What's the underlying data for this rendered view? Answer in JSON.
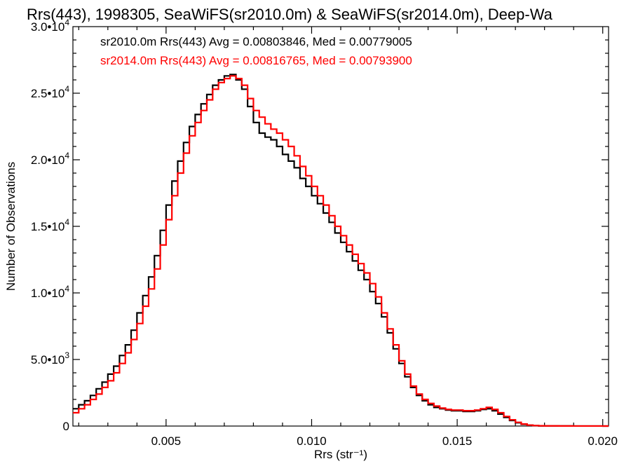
{
  "chart_data": {
    "type": "line",
    "title": "Rrs(443), 1998305, SeaWiFS(sr2010.0m) & SeaWiFS(sr2014.0m), Deep-Wa",
    "xlabel": "Rrs (str⁻¹)",
    "ylabel": "Number of Observations",
    "xlim": [
      0.0018,
      0.0202
    ],
    "ylim": [
      0,
      30000
    ],
    "x_ticks": [
      0.005,
      0.01,
      0.015,
      0.02
    ],
    "x_tick_labels": [
      "0.005",
      "0.010",
      "0.015",
      "0.020"
    ],
    "y_ticks": [
      0,
      5000,
      10000,
      15000,
      20000,
      25000,
      30000
    ],
    "y_tick_labels": [
      {
        "mant": "0",
        "exp": ""
      },
      {
        "mant": "5.0•10",
        "exp": "3"
      },
      {
        "mant": "1.0•10",
        "exp": "4"
      },
      {
        "mant": "1.5•10",
        "exp": "4"
      },
      {
        "mant": "2.0•10",
        "exp": "4"
      },
      {
        "mant": "2.5•10",
        "exp": "4"
      },
      {
        "mant": "3.0•10",
        "exp": "4"
      }
    ],
    "legend_placement": "top-left",
    "grid": false,
    "step": true,
    "series": [
      {
        "label": "sr2010.0m Rrs(443) Avg = 0.00803846, Med = 0.00779005",
        "color": "#000000",
        "points": [
          [
            0.0018,
            1300
          ],
          [
            0.002,
            1600
          ],
          [
            0.0022,
            1900
          ],
          [
            0.0024,
            2300
          ],
          [
            0.0026,
            2800
          ],
          [
            0.0028,
            3300
          ],
          [
            0.003,
            3900
          ],
          [
            0.0032,
            4500
          ],
          [
            0.0034,
            5300
          ],
          [
            0.0036,
            6100
          ],
          [
            0.0038,
            7200
          ],
          [
            0.004,
            8500
          ],
          [
            0.0042,
            9800
          ],
          [
            0.0044,
            11200
          ],
          [
            0.0046,
            12800
          ],
          [
            0.0048,
            14700
          ],
          [
            0.005,
            16600
          ],
          [
            0.0052,
            18400
          ],
          [
            0.0054,
            19900
          ],
          [
            0.0056,
            21300
          ],
          [
            0.0058,
            22500
          ],
          [
            0.006,
            23400
          ],
          [
            0.0062,
            24200
          ],
          [
            0.0064,
            24900
          ],
          [
            0.0066,
            25600
          ],
          [
            0.0068,
            26000
          ],
          [
            0.007,
            26300
          ],
          [
            0.0072,
            26400
          ],
          [
            0.0074,
            26000
          ],
          [
            0.0076,
            25300
          ],
          [
            0.0078,
            24000
          ],
          [
            0.008,
            22800
          ],
          [
            0.0082,
            22000
          ],
          [
            0.0084,
            21700
          ],
          [
            0.0086,
            21500
          ],
          [
            0.0088,
            21000
          ],
          [
            0.009,
            20400
          ],
          [
            0.0092,
            19900
          ],
          [
            0.0094,
            19400
          ],
          [
            0.0096,
            18600
          ],
          [
            0.0098,
            18000
          ],
          [
            0.01,
            17300
          ],
          [
            0.0102,
            16700
          ],
          [
            0.0104,
            16000
          ],
          [
            0.0106,
            15300
          ],
          [
            0.0108,
            14500
          ],
          [
            0.011,
            13800
          ],
          [
            0.0112,
            13100
          ],
          [
            0.0114,
            12400
          ],
          [
            0.0116,
            11700
          ],
          [
            0.0118,
            11000
          ],
          [
            0.012,
            10100
          ],
          [
            0.0122,
            9200
          ],
          [
            0.0124,
            8200
          ],
          [
            0.0126,
            7000
          ],
          [
            0.0128,
            5800
          ],
          [
            0.013,
            4700
          ],
          [
            0.0132,
            3700
          ],
          [
            0.0134,
            2900
          ],
          [
            0.0136,
            2300
          ],
          [
            0.0138,
            1900
          ],
          [
            0.014,
            1600
          ],
          [
            0.0142,
            1400
          ],
          [
            0.0144,
            1300
          ],
          [
            0.0146,
            1200
          ],
          [
            0.0148,
            1150
          ],
          [
            0.015,
            1150
          ],
          [
            0.0152,
            1100
          ],
          [
            0.0154,
            1100
          ],
          [
            0.0156,
            1150
          ],
          [
            0.0158,
            1250
          ],
          [
            0.016,
            1300
          ],
          [
            0.0162,
            1150
          ],
          [
            0.0164,
            900
          ],
          [
            0.0166,
            650
          ],
          [
            0.0168,
            420
          ],
          [
            0.017,
            250
          ],
          [
            0.0172,
            130
          ],
          [
            0.0174,
            60
          ],
          [
            0.0176,
            30
          ],
          [
            0.0178,
            15
          ],
          [
            0.018,
            10
          ],
          [
            0.0185,
            5
          ],
          [
            0.019,
            3
          ],
          [
            0.0195,
            2
          ],
          [
            0.02,
            1
          ]
        ]
      },
      {
        "label": "sr2014.0m Rrs(443) Avg = 0.00816765, Med = 0.00793900",
        "color": "#ff0000",
        "points": [
          [
            0.0018,
            1000
          ],
          [
            0.002,
            1300
          ],
          [
            0.0022,
            1600
          ],
          [
            0.0024,
            2000
          ],
          [
            0.0026,
            2400
          ],
          [
            0.0028,
            2900
          ],
          [
            0.003,
            3400
          ],
          [
            0.0032,
            4000
          ],
          [
            0.0034,
            4700
          ],
          [
            0.0036,
            5500
          ],
          [
            0.0038,
            6500
          ],
          [
            0.004,
            7700
          ],
          [
            0.0042,
            9000
          ],
          [
            0.0044,
            10300
          ],
          [
            0.0046,
            11800
          ],
          [
            0.0048,
            13600
          ],
          [
            0.005,
            15500
          ],
          [
            0.0052,
            17300
          ],
          [
            0.0054,
            19000
          ],
          [
            0.0056,
            20500
          ],
          [
            0.0058,
            21800
          ],
          [
            0.006,
            22800
          ],
          [
            0.0062,
            23700
          ],
          [
            0.0064,
            24500
          ],
          [
            0.0066,
            25300
          ],
          [
            0.0068,
            25800
          ],
          [
            0.007,
            26100
          ],
          [
            0.0072,
            26300
          ],
          [
            0.0074,
            26100
          ],
          [
            0.0076,
            25600
          ],
          [
            0.0078,
            24600
          ],
          [
            0.008,
            23700
          ],
          [
            0.0082,
            23200
          ],
          [
            0.0084,
            22700
          ],
          [
            0.0086,
            22300
          ],
          [
            0.0088,
            22000
          ],
          [
            0.009,
            21500
          ],
          [
            0.0092,
            21000
          ],
          [
            0.0094,
            20300
          ],
          [
            0.0096,
            19500
          ],
          [
            0.0098,
            18800
          ],
          [
            0.01,
            18000
          ],
          [
            0.0102,
            17300
          ],
          [
            0.0104,
            16600
          ],
          [
            0.0106,
            15800
          ],
          [
            0.0108,
            15000
          ],
          [
            0.011,
            14300
          ],
          [
            0.0112,
            13600
          ],
          [
            0.0114,
            12900
          ],
          [
            0.0116,
            12200
          ],
          [
            0.0118,
            11500
          ],
          [
            0.012,
            10700
          ],
          [
            0.0122,
            9700
          ],
          [
            0.0124,
            8500
          ],
          [
            0.0126,
            7300
          ],
          [
            0.0128,
            6100
          ],
          [
            0.013,
            4900
          ],
          [
            0.0132,
            3900
          ],
          [
            0.0134,
            3000
          ],
          [
            0.0136,
            2400
          ],
          [
            0.0138,
            2000
          ],
          [
            0.014,
            1700
          ],
          [
            0.0142,
            1500
          ],
          [
            0.0144,
            1350
          ],
          [
            0.0146,
            1250
          ],
          [
            0.0148,
            1200
          ],
          [
            0.015,
            1200
          ],
          [
            0.0152,
            1150
          ],
          [
            0.0154,
            1150
          ],
          [
            0.0156,
            1200
          ],
          [
            0.0158,
            1300
          ],
          [
            0.016,
            1400
          ],
          [
            0.0162,
            1250
          ],
          [
            0.0164,
            1000
          ],
          [
            0.0166,
            720
          ],
          [
            0.0168,
            470
          ],
          [
            0.017,
            280
          ],
          [
            0.0172,
            150
          ],
          [
            0.0174,
            70
          ],
          [
            0.0176,
            35
          ],
          [
            0.0178,
            18
          ],
          [
            0.018,
            12
          ],
          [
            0.0185,
            6
          ],
          [
            0.019,
            4
          ],
          [
            0.0195,
            2
          ],
          [
            0.02,
            1
          ]
        ]
      }
    ]
  }
}
